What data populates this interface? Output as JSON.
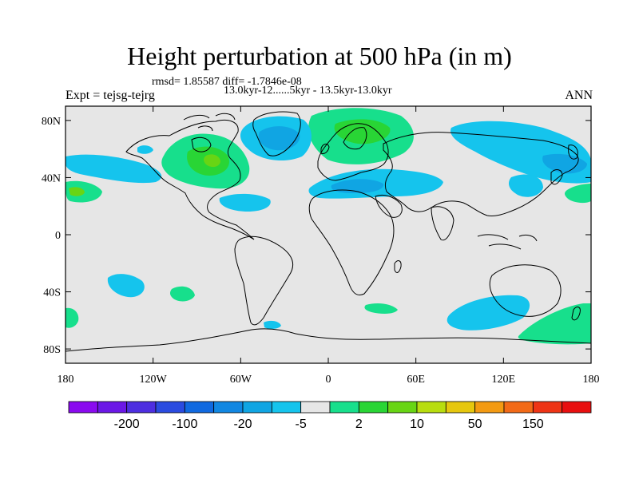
{
  "title": "Height perturbation at 500 hPa (in m)",
  "subtitle_stats": "rmsd= 1.85587 diff= -1.7846e-08",
  "subtitle_period": "13.0kyr-12......5kyr - 13.5kyr-13.0kyr",
  "left_label": "Expt = tejsg-tejrg",
  "right_label": "ANN",
  "lat_ticks": [
    {
      "value": 80,
      "label": "80N"
    },
    {
      "value": 40,
      "label": "40N"
    },
    {
      "value": 0,
      "label": "0"
    },
    {
      "value": -40,
      "label": "40S"
    },
    {
      "value": -80,
      "label": "80S"
    }
  ],
  "lon_ticks": [
    {
      "value": -180,
      "label": "180"
    },
    {
      "value": -120,
      "label": "120W"
    },
    {
      "value": -60,
      "label": "60W"
    },
    {
      "value": 0,
      "label": "0"
    },
    {
      "value": 60,
      "label": "60E"
    },
    {
      "value": 120,
      "label": "120E"
    },
    {
      "value": 180,
      "label": "180"
    }
  ],
  "colorbar": {
    "colors": [
      "#8a0aef",
      "#6b17e6",
      "#4d2ee0",
      "#2a4be0",
      "#1069e0",
      "#1187e2",
      "#10a5e3",
      "#15c4ed",
      "#e6e6e6",
      "#17df8c",
      "#29d535",
      "#68d514",
      "#b8dd0f",
      "#e6c70e",
      "#f39a12",
      "#f26a17",
      "#ee3415",
      "#e80f0f"
    ],
    "labels": [
      {
        "after_index": 1,
        "text": "-200"
      },
      {
        "after_index": 3,
        "text": "-100"
      },
      {
        "after_index": 5,
        "text": "-20"
      },
      {
        "after_index": 7,
        "text": "-5"
      },
      {
        "after_index": 9,
        "text": "2"
      },
      {
        "after_index": 11,
        "text": "10"
      },
      {
        "after_index": 13,
        "text": "50"
      },
      {
        "after_index": 15,
        "text": "150"
      }
    ]
  }
}
